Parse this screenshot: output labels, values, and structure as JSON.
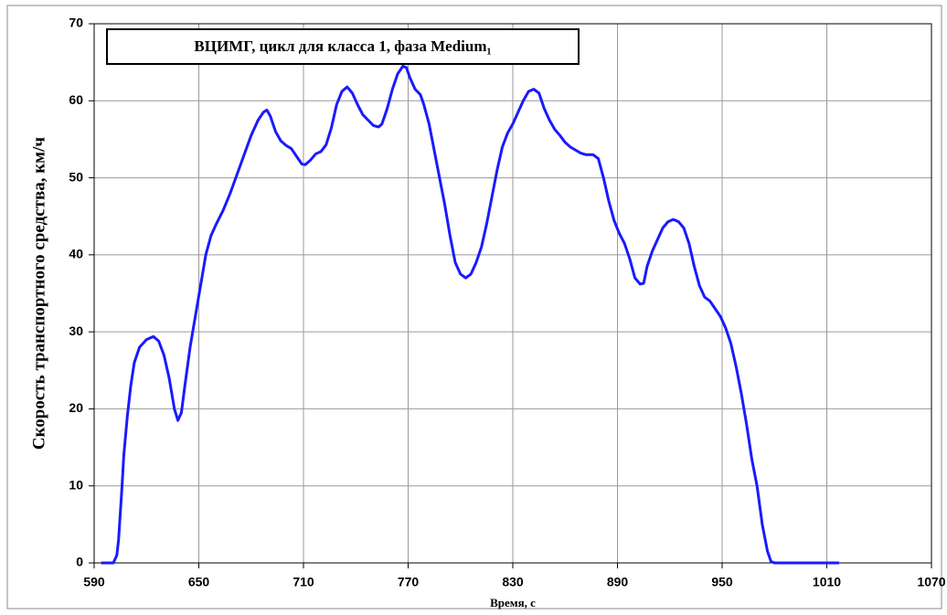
{
  "chart_data": {
    "type": "line",
    "title": "ВЦИМГ, цикл для класса 1, фаза Medium₁",
    "x_label": "Время, с",
    "y_label": "Скорость транспортного средства, км/ч",
    "xlim": [
      590,
      1070
    ],
    "xticks": [
      590,
      650,
      710,
      770,
      830,
      890,
      950,
      1010,
      1070
    ],
    "ylim": [
      0,
      70
    ],
    "yticks": [
      0,
      10,
      20,
      30,
      40,
      50,
      60,
      70
    ],
    "grid": true,
    "series": [
      {
        "color": "#1a1aff",
        "x": [
          594,
          601,
          603,
          604,
          606,
          607,
          609,
          611,
          613,
          616,
          620,
          624,
          627,
          630,
          633,
          636,
          638,
          640,
          642,
          645,
          648,
          651,
          654,
          657,
          660,
          664,
          668,
          672,
          676,
          680,
          684,
          687,
          689,
          691,
          694,
          697,
          700,
          703,
          706,
          709,
          711,
          714,
          717,
          720,
          723,
          726,
          729,
          732,
          735,
          738,
          741,
          744,
          747,
          750,
          753,
          755,
          758,
          761,
          764,
          767,
          769,
          771,
          774,
          777,
          779,
          782,
          785,
          788,
          791,
          794,
          797,
          800,
          803,
          806,
          809,
          812,
          815,
          818,
          821,
          824,
          827,
          830,
          833,
          836,
          839,
          842,
          845,
          848,
          851,
          854,
          857,
          860,
          863,
          866,
          869,
          872,
          876,
          879,
          882,
          885,
          888,
          891,
          894,
          897,
          900,
          903,
          905,
          907,
          910,
          913,
          916,
          919,
          922,
          925,
          928,
          931,
          934,
          937,
          940,
          943,
          946,
          949,
          952,
          955,
          958,
          961,
          964,
          967,
          970,
          973,
          976,
          978,
          980,
          1000,
          1017
        ],
        "values": [
          0,
          0,
          1,
          3,
          10,
          14,
          19,
          23,
          26,
          28,
          29,
          29.4,
          28.8,
          27,
          24,
          20,
          18.5,
          19.5,
          23,
          28,
          32,
          36,
          40,
          42.5,
          44,
          45.8,
          48,
          50.5,
          53,
          55.5,
          57.5,
          58.5,
          58.8,
          58,
          56,
          54.8,
          54.2,
          53.8,
          52.8,
          51.8,
          51.7,
          52.3,
          53.1,
          53.4,
          54.3,
          56.5,
          59.5,
          61.2,
          61.8,
          61,
          59.5,
          58.2,
          57.5,
          56.8,
          56.6,
          57,
          59,
          61.5,
          63.5,
          64.5,
          64.3,
          63,
          61.5,
          60.8,
          59.5,
          57,
          53.5,
          50,
          46.5,
          42.5,
          39,
          37.5,
          37,
          37.5,
          39,
          41,
          44,
          47.5,
          51,
          54,
          55.8,
          57,
          58.5,
          60,
          61.2,
          61.5,
          61,
          59,
          57.5,
          56.3,
          55.5,
          54.6,
          54,
          53.6,
          53.2,
          53,
          53,
          52.5,
          50,
          47,
          44.5,
          42.8,
          41.5,
          39.5,
          37,
          36.2,
          36.3,
          38.5,
          40.5,
          42,
          43.5,
          44.3,
          44.6,
          44.3,
          43.5,
          41.5,
          38.5,
          36,
          34.5,
          34,
          33,
          32,
          30.5,
          28.5,
          25.5,
          22,
          18,
          13.5,
          10,
          5,
          1.5,
          0.2,
          0,
          0,
          0
        ]
      }
    ]
  }
}
